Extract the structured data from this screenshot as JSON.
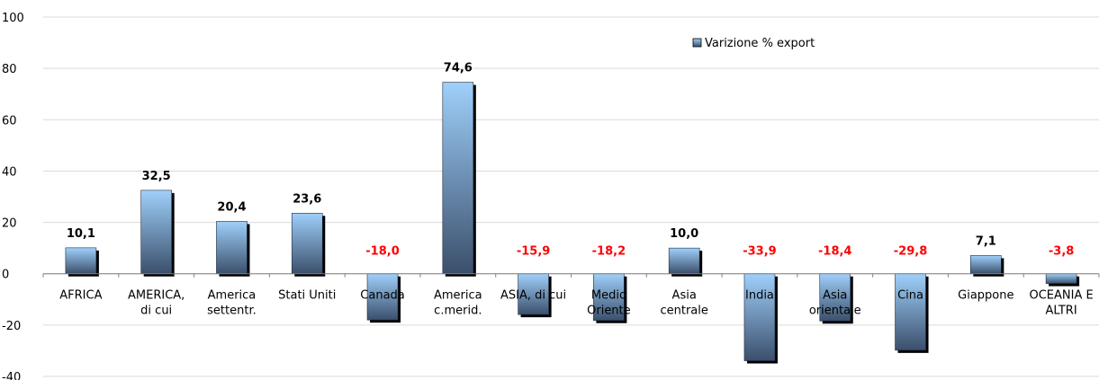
{
  "chart_data": {
    "type": "bar",
    "categories": [
      "AFRICA",
      "AMERICA,\ndi cui",
      "America\nsettentr.",
      "Stati Uniti",
      "Canada",
      "America\nc.merid.",
      "ASIA, di cui",
      "Medio\nOriente",
      "Asia\ncentrale",
      "India",
      "Asia\norientale",
      "Cina",
      "Giappone",
      "OCEANIA E\nALTRI"
    ],
    "series": [
      {
        "name": "Varizione % export",
        "values": [
          10.1,
          32.5,
          20.4,
          23.6,
          -18.0,
          74.6,
          -15.9,
          -18.2,
          10.0,
          -33.9,
          -18.4,
          -29.8,
          7.1,
          -3.8
        ]
      }
    ],
    "data_labels": [
      "10,1",
      "32,5",
      "20,4",
      "23,6",
      "-18,0",
      "74,6",
      "-15,9",
      "-18,2",
      "10,0",
      "-33,9",
      "-18,4",
      "-29,8",
      "7,1",
      "-3,8"
    ],
    "ylim": [
      -40,
      100
    ],
    "yticks": [
      -40,
      -20,
      0,
      20,
      40,
      60,
      80,
      100
    ],
    "ytick_labels": [
      "-40",
      "-20",
      "0",
      "20",
      "40",
      "60",
      "80",
      "100"
    ],
    "grid": true,
    "legend_position": "top-right",
    "colors": {
      "bar_top": "#9fd0fb",
      "bar_bottom": "#3b4f6b",
      "shadow": "#000000",
      "positive_label": "#000000",
      "negative_label": "#ff0000",
      "gridline": "#d9d9d9"
    },
    "title": "",
    "xlabel": "",
    "ylabel": ""
  }
}
